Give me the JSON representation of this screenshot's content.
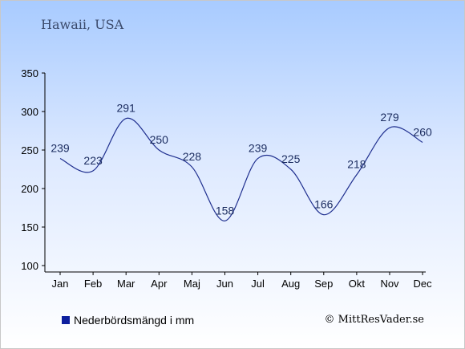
{
  "header": {
    "title": "Hawaii, USA"
  },
  "legend": {
    "label": "Nederbördsmängd i mm",
    "color": "#0d1f9e"
  },
  "footer": {
    "copyright": "© MittResVader.se"
  },
  "chart_data": {
    "type": "line",
    "categories": [
      "Jan",
      "Feb",
      "Mar",
      "Apr",
      "Maj",
      "Jun",
      "Jul",
      "Aug",
      "Sep",
      "Okt",
      "Nov",
      "Dec"
    ],
    "series": [
      {
        "name": "Nederbördsmängd i mm",
        "values": [
          239,
          223,
          291,
          250,
          228,
          158,
          239,
          225,
          166,
          218,
          279,
          260
        ],
        "color": "#1f2f8f"
      }
    ],
    "ylim": [
      100,
      350
    ],
    "yticks": [
      100,
      150,
      200,
      250,
      300,
      350
    ],
    "grid": false,
    "legend": "bottom-left"
  }
}
